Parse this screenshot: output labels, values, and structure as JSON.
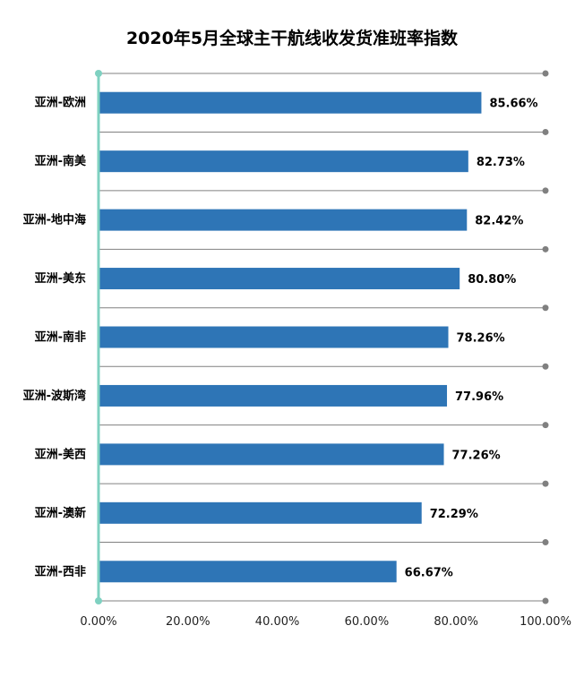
{
  "chart_data": {
    "type": "bar",
    "orientation": "horizontal",
    "title": "2020年5月全球主干航线收发货准班率指数",
    "categories": [
      "亚洲-欧洲",
      "亚洲-南美",
      "亚洲-地中海",
      "亚洲-美东",
      "亚洲-南非",
      "亚洲-波斯湾",
      "亚洲-美西",
      "亚洲-澳新",
      "亚洲-西非"
    ],
    "values": [
      85.66,
      82.73,
      82.42,
      80.8,
      78.26,
      77.96,
      77.26,
      72.29,
      66.67
    ],
    "value_labels": [
      "85.66%",
      "82.73%",
      "82.42%",
      "80.80%",
      "78.26%",
      "77.96%",
      "77.26%",
      "72.29%",
      "66.67%"
    ],
    "xlim": [
      0,
      100
    ],
    "x_ticks": [
      0,
      20,
      40,
      60,
      80,
      100
    ],
    "x_tick_labels": [
      "0.00%",
      "20.00%",
      "40.00%",
      "60.00%",
      "80.00%",
      "100.00%"
    ],
    "xlabel": "",
    "ylabel": "",
    "grid": true,
    "legend": "none",
    "colors": {
      "bar": "#2e75b6",
      "axis": "#7fd1c1",
      "grid": "#808080"
    }
  }
}
